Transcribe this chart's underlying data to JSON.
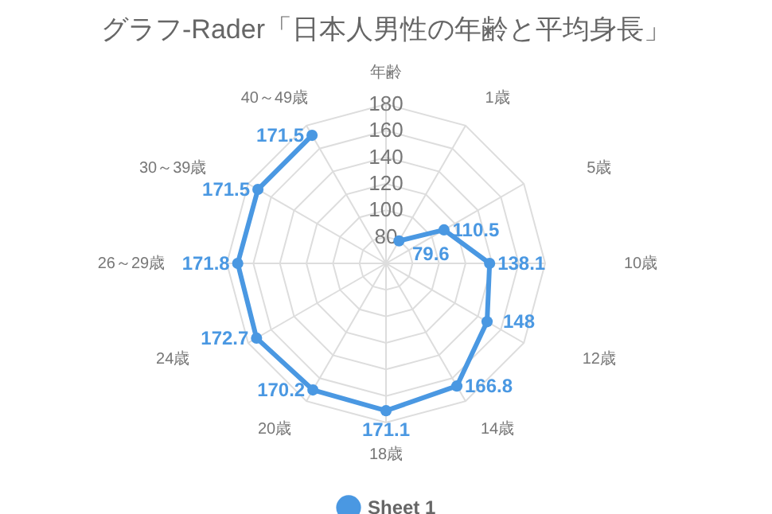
{
  "chart_data": {
    "type": "radar",
    "title": "グラフ-Rader「日本人男性の年齢と平均身長」",
    "categories": [
      "年齢",
      "1歳",
      "5歳",
      "10歳",
      "12歳",
      "14歳",
      "18歳",
      "20歳",
      "24歳",
      "26～29歳",
      "30～39歳",
      "40～49歳"
    ],
    "series": [
      {
        "name": "Sheet 1",
        "color": "#4a98e2",
        "values": [
          null,
          79.6,
          110.5,
          138.1,
          148,
          166.8,
          171.1,
          170.2,
          172.7,
          171.8,
          171.5,
          171.5
        ]
      }
    ],
    "ylim": [
      60,
      180
    ],
    "yticks": [
      80,
      100,
      120,
      140,
      160,
      180
    ],
    "grid": true,
    "legend": "bottom",
    "marker": "circle",
    "data_labels": true
  }
}
